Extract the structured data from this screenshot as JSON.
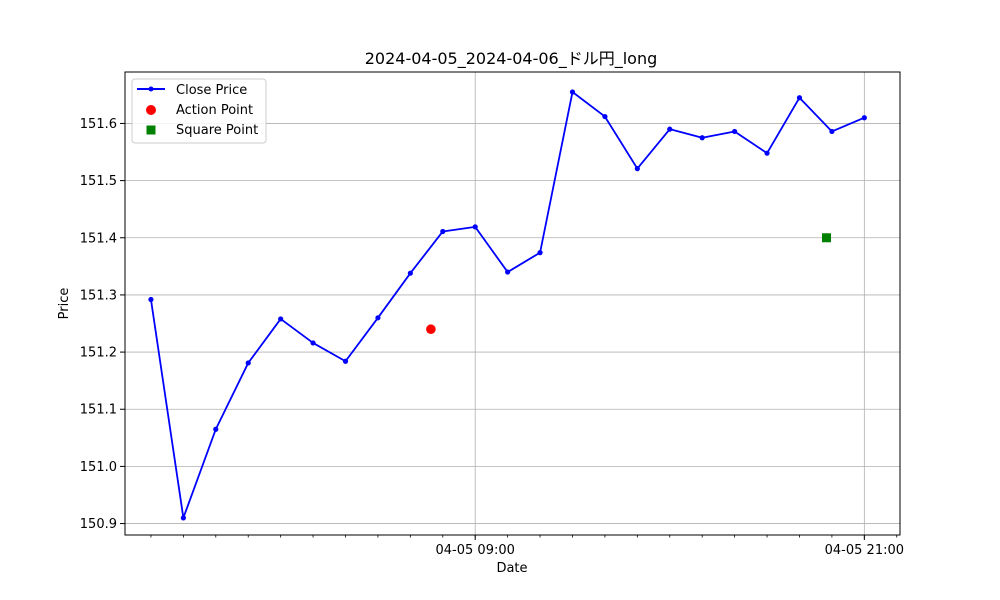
{
  "chart_data": {
    "type": "line",
    "title": "2024-04-05_2024-04-06_ドル円_long",
    "xlabel": "Date",
    "ylabel": "Price",
    "ylim": [
      150.88,
      151.69
    ],
    "xlim": [
      "2024-04-04 22:12",
      "2024-04-05 22:06"
    ],
    "grid": true,
    "legend_position": "upper-left",
    "x_tick_labels": [
      {
        "value": "2024-04-05 09:00",
        "label": "04-05 09:00"
      },
      {
        "value": "2024-04-05 21:00",
        "label": "04-05 21:00"
      }
    ],
    "y_ticks": [
      150.9,
      151.0,
      151.1,
      151.2,
      151.3,
      151.4,
      151.5,
      151.6
    ],
    "y_tick_labels": [
      "150.9",
      "151.0",
      "151.1",
      "151.2",
      "151.3",
      "151.4",
      "151.5",
      "151.6"
    ],
    "series": [
      {
        "name": "Close Price",
        "kind": "line",
        "color": "#0000ff",
        "x": [
          "2024-04-04 23:00",
          "2024-04-05 00:00",
          "2024-04-05 01:00",
          "2024-04-05 02:00",
          "2024-04-05 03:00",
          "2024-04-05 04:00",
          "2024-04-05 05:00",
          "2024-04-05 06:00",
          "2024-04-05 07:00",
          "2024-04-05 08:00",
          "2024-04-05 09:00",
          "2024-04-05 10:00",
          "2024-04-05 11:00",
          "2024-04-05 12:00",
          "2024-04-05 13:00",
          "2024-04-05 14:00",
          "2024-04-05 15:00",
          "2024-04-05 16:00",
          "2024-04-05 17:00",
          "2024-04-05 18:00",
          "2024-04-05 19:00",
          "2024-04-05 20:00",
          "2024-04-05 21:00"
        ],
        "y": [
          151.292,
          150.91,
          151.065,
          151.181,
          151.258,
          151.216,
          151.184,
          151.26,
          151.338,
          151.411,
          151.419,
          151.34,
          151.374,
          151.655,
          151.612,
          151.521,
          151.59,
          151.575,
          151.586,
          151.548,
          151.645,
          151.586,
          151.61
        ]
      },
      {
        "name": "Action Point",
        "kind": "scatter",
        "marker": "circle",
        "color": "#ff0000",
        "x": [
          "2024-04-05 07:38"
        ],
        "y": [
          151.24
        ]
      },
      {
        "name": "Square Point",
        "kind": "scatter",
        "marker": "square",
        "color": "#008000",
        "x": [
          "2024-04-05 19:50"
        ],
        "y": [
          151.4
        ]
      }
    ]
  }
}
